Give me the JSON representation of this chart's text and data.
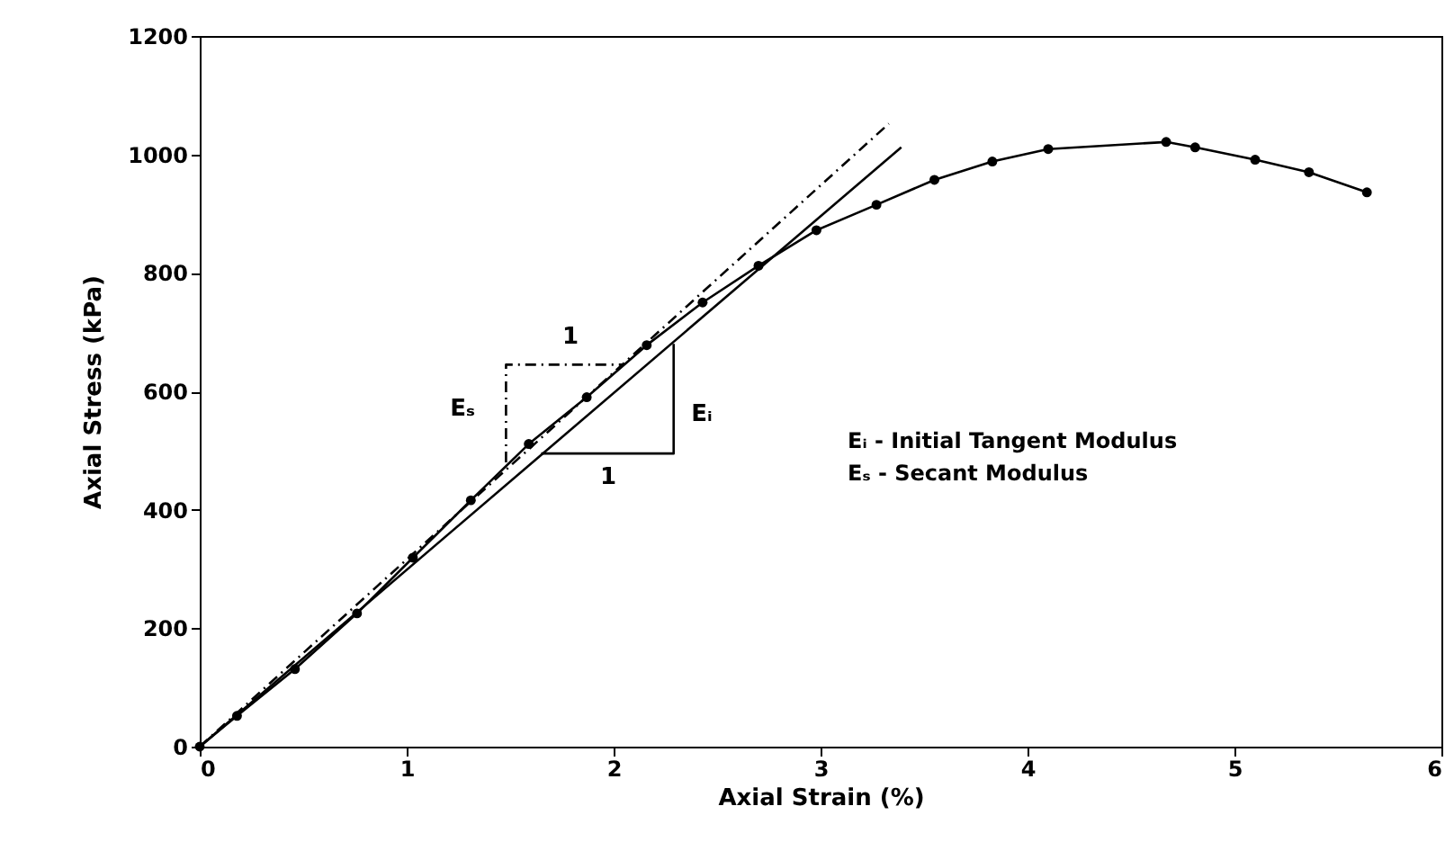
{
  "chart_data": {
    "type": "line",
    "xlabel": "Axial Strain (%)",
    "ylabel": "Axial Stress (kPa)",
    "xlim": [
      0,
      6
    ],
    "xticks": [
      0,
      1,
      2,
      3,
      4,
      5,
      6
    ],
    "ylim": [
      0,
      1200
    ],
    "yticks": [
      0,
      200,
      400,
      600,
      800,
      1000,
      1200
    ],
    "grid": false,
    "series": [
      {
        "color": "#000000",
        "marker": "circle",
        "line_style": "solid",
        "x": [
          0,
          0.18,
          0.46,
          0.76,
          1.03,
          1.31,
          1.59,
          1.87,
          2.16,
          2.43,
          2.7,
          2.98,
          3.27,
          3.55,
          3.83,
          4.1,
          4.67,
          4.81,
          5.1,
          5.36,
          5.64
        ],
        "values": [
          0,
          52,
          131,
          225,
          319,
          416,
          511,
          590,
          678,
          750,
          812,
          872,
          915,
          957,
          988,
          1009,
          1021,
          1012,
          991,
          970,
          936
        ]
      },
      {
        "type": "line",
        "color": "#000000",
        "marker": "none",
        "line_style": "solid",
        "x": [
          0,
          3.39
        ],
        "values": [
          0,
          1012
        ]
      },
      {
        "type": "line",
        "color": "#000000",
        "marker": "none",
        "line_style": "dashed",
        "x": [
          0,
          3.33
        ],
        "values": [
          0,
          1052
        ]
      },
      {
        "type": "line",
        "color": "#000000",
        "marker": "none",
        "line_style": "solid",
        "x": [
          1.65,
          2.29,
          2.29
        ],
        "values": [
          495,
          495,
          680
        ]
      },
      {
        "type": "line",
        "color": "#000000",
        "marker": "none",
        "line_style": "dashed",
        "x": [
          1.48,
          1.48,
          2.05
        ],
        "values": [
          480,
          645,
          645
        ]
      }
    ],
    "annotations": [
      "1",
      "1",
      "Eₛ",
      "Eᵢ",
      "Eᵢ - Initial Tangent Modulus",
      "Eₛ - Secant Modulus"
    ]
  }
}
